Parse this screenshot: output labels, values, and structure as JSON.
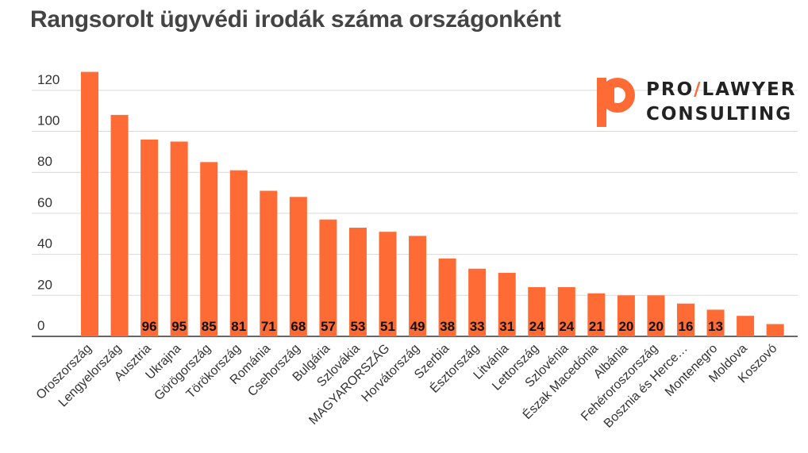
{
  "title": "Rangsorolt ügyvédi irodák száma országonként",
  "logo": {
    "part1": "PRO",
    "slash": "/",
    "part2": "LAWYER",
    "line2": "CONSULTING",
    "brand_color": "#ff6b35"
  },
  "chart_data": {
    "type": "bar",
    "title": "Rangsorolt ügyvédi irodák száma országonként",
    "xlabel": "",
    "ylabel": "",
    "ylim": [
      0,
      130
    ],
    "yticks": [
      0,
      20,
      40,
      60,
      80,
      100,
      120
    ],
    "grid": true,
    "bar_color": "#ff6b35",
    "categories": [
      "Oroszország",
      "Lengyelország",
      "Ausztria",
      "Ukrajna",
      "Görögország",
      "Törökország",
      "Románia",
      "Csehország",
      "Bulgária",
      "Szlovákia",
      "MAGYARORSZÁG",
      "Horvátország",
      "Szerbia",
      "Észtország",
      "Litvánia",
      "Lettország",
      "Szlovénia",
      "Észak Macedónia",
      "Albánia",
      "Fehéroroszország",
      "Bosznia és Herce…",
      "Montenegro",
      "Moldova",
      "Koszovó"
    ],
    "values": [
      129,
      108,
      96,
      95,
      85,
      81,
      71,
      68,
      57,
      53,
      51,
      49,
      38,
      33,
      31,
      24,
      24,
      21,
      20,
      20,
      16,
      13,
      10,
      6
    ],
    "data_labels": [
      "",
      "",
      "96",
      "95",
      "85",
      "81",
      "71",
      "68",
      "57",
      "53",
      "51",
      "49",
      "38",
      "33",
      "31",
      "24",
      "24",
      "21",
      "20",
      "20",
      "16",
      "13",
      "",
      ""
    ]
  }
}
